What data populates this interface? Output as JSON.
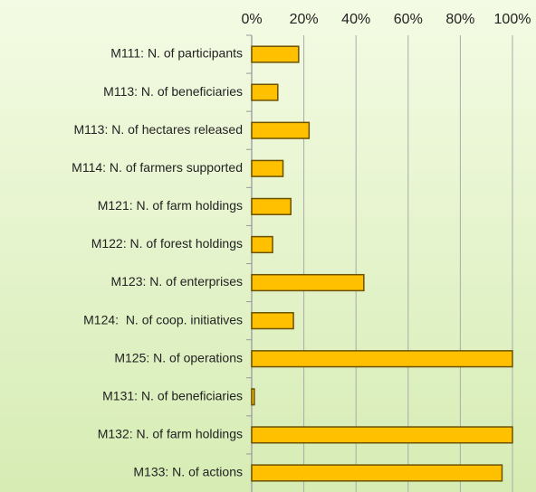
{
  "chart_data": {
    "type": "bar",
    "orientation": "horizontal",
    "categories": [
      "M111: N. of participants",
      "M113: N. of beneficiaries",
      "M113: N. of hectares released",
      "M114: N. of farmers supported",
      "M121: N. of farm holdings",
      "M122: N. of forest holdings",
      "M123: N. of enterprises",
      "M124:  N. of coop. initiatives",
      "M125: N. of operations",
      "M131: N. of beneficiaries",
      "M132: N. of farm holdings",
      "M133: N. of actions"
    ],
    "values": [
      18,
      10,
      22,
      12,
      15,
      8,
      43,
      16,
      100,
      1,
      100,
      96
    ],
    "color": "#ffc000",
    "xlim": [
      0,
      100
    ],
    "xticks": [
      {
        "value": 0,
        "label": "0%"
      },
      {
        "value": 20,
        "label": "20%"
      },
      {
        "value": 40,
        "label": "40%"
      },
      {
        "value": 60,
        "label": "60%"
      },
      {
        "value": 80,
        "label": "80%"
      },
      {
        "value": 100,
        "label": "100%"
      }
    ],
    "grid": true
  }
}
